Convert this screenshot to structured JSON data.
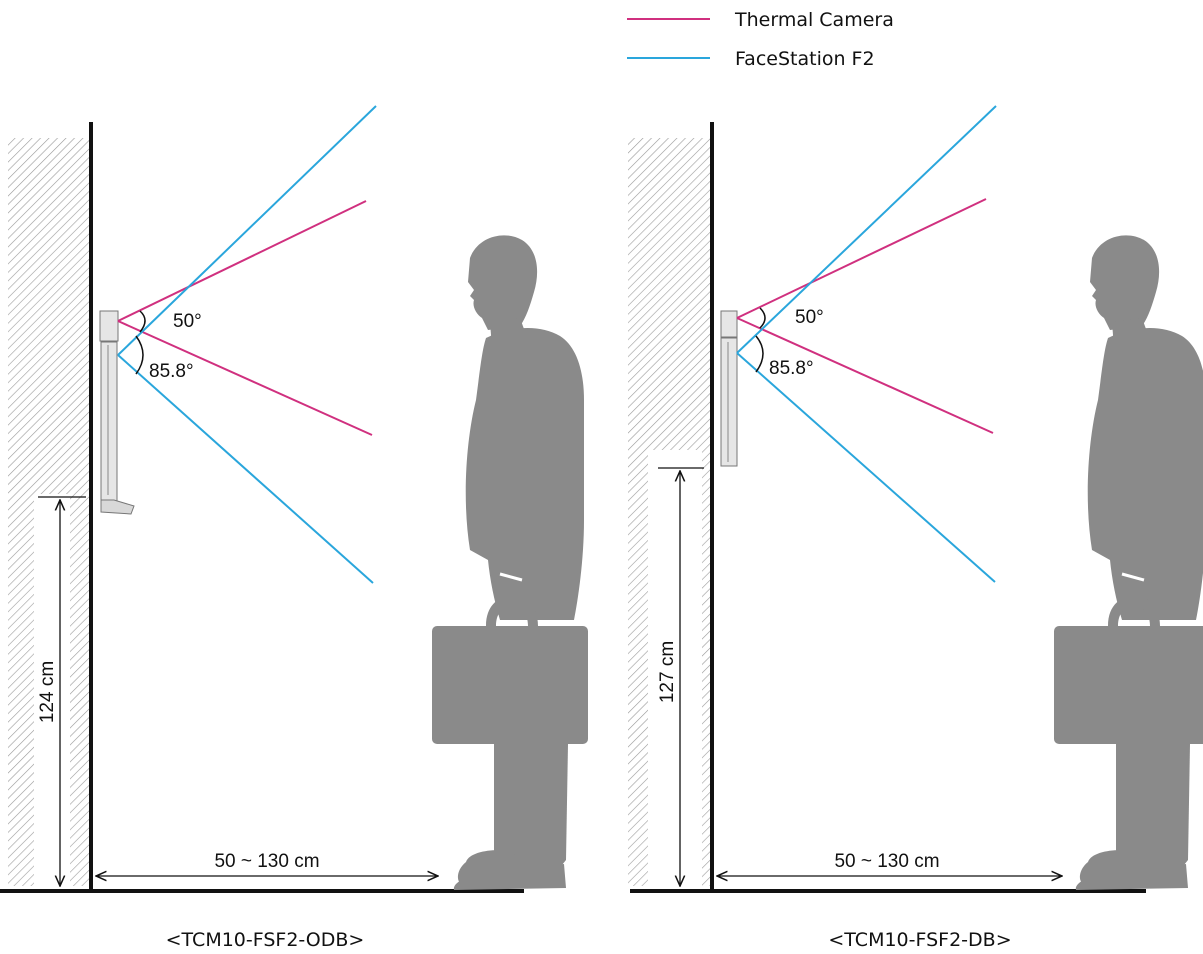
{
  "legend": {
    "thermal": {
      "label": "Thermal Camera",
      "color": "#d0307f"
    },
    "face": {
      "label": "FaceStation F2",
      "color": "#2aa6dc"
    }
  },
  "colors": {
    "wall": "#111111",
    "person": "#8a8a8a",
    "hatch": "#9a9a9a",
    "device": "#e6e6e6"
  },
  "left": {
    "thermal_angle": "50°",
    "face_angle": "85.8°",
    "height": "124 cm",
    "distance": "50 ~ 130 cm",
    "caption": "<TCM10-FSF2-ODB>"
  },
  "right": {
    "thermal_angle": "50°",
    "face_angle": "85.8°",
    "height": "127 cm",
    "distance": "50 ~ 130 cm",
    "caption": "<TCM10-FSF2-DB>"
  }
}
